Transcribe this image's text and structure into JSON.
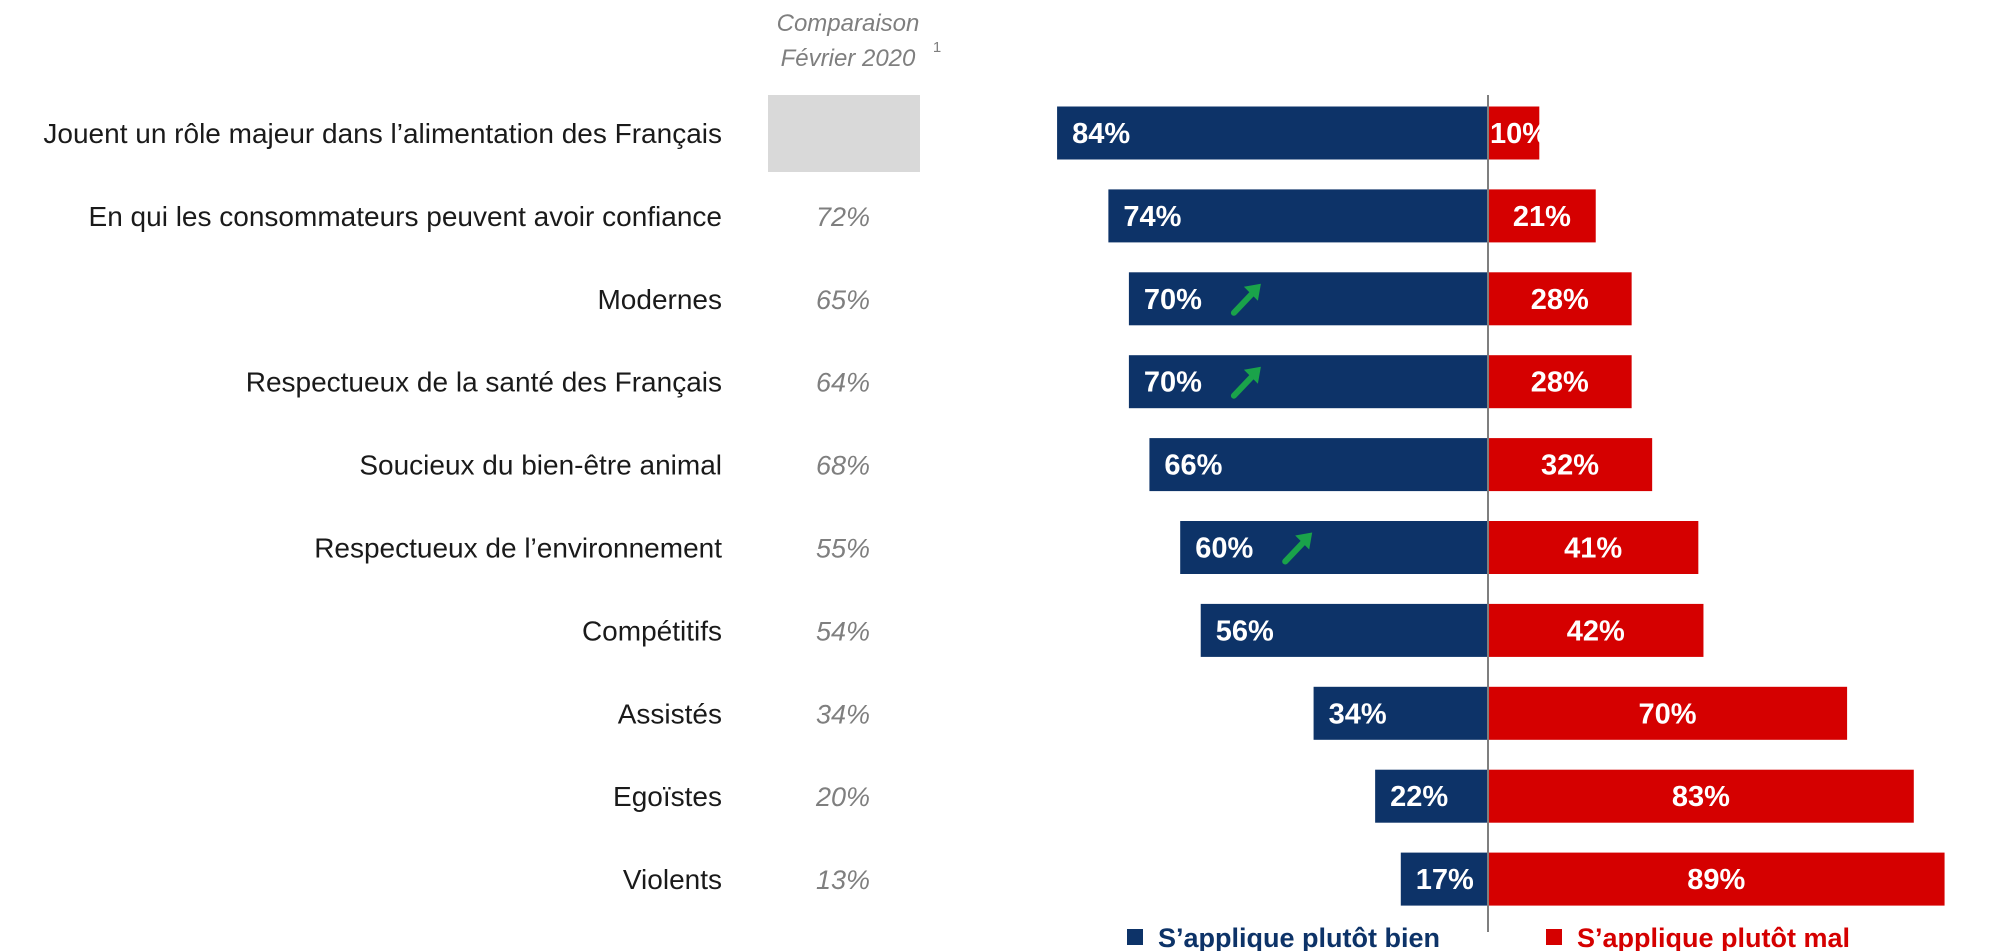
{
  "comparison_header": {
    "line1": "Comparaison",
    "line2": "Février 2020",
    "footnote": "1"
  },
  "colors": {
    "positive": "#0d3368",
    "negative": "#d50000",
    "comparison": "#7f7f7f",
    "trend_up": "#1aa34a",
    "divider": "#7f7f7f",
    "placeholder": "#d9d9d9"
  },
  "chart_data": {
    "type": "bar",
    "orientation": "horizontal-diverging",
    "categories": [
      "Jouent un rôle majeur dans l’alimentation des Français",
      "En qui les consommateurs peuvent avoir confiance",
      "Modernes",
      "Respectueux de la santé des Français",
      "Soucieux du bien-être animal",
      "Respectueux de l’environnement",
      "Compétitifs",
      "Assistés",
      "Egoïstes",
      "Violents"
    ],
    "series": [
      {
        "name": "S’applique plutôt bien",
        "values": [
          84,
          74,
          70,
          70,
          66,
          60,
          56,
          34,
          22,
          17
        ],
        "labels": [
          "84%",
          "74%",
          "70%",
          "70%",
          "66%",
          "60%",
          "56%",
          "34%",
          "22%",
          "17%"
        ]
      },
      {
        "name": "S’applique plutôt mal",
        "values": [
          10,
          21,
          28,
          28,
          32,
          41,
          42,
          70,
          83,
          89
        ],
        "labels": [
          "10%",
          "21%",
          "28%",
          "28%",
          "32%",
          "41%",
          "42%",
          "70%",
          "83%",
          "89%"
        ]
      }
    ],
    "comparison_values": [
      "",
      "72%",
      "65%",
      "64%",
      "68%",
      "55%",
      "54%",
      "34%",
      "20%",
      "13%"
    ],
    "trend_up": [
      false,
      false,
      true,
      true,
      false,
      true,
      false,
      false,
      false,
      false
    ],
    "legend_position": "bottom"
  }
}
